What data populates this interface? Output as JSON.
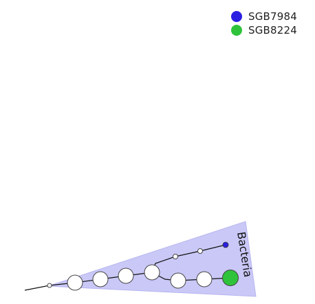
{
  "legend": {
    "items": [
      {
        "label": "SGB7984",
        "color": "#2a1fe0"
      },
      {
        "label": "SGB8224",
        "color": "#2ec33b"
      }
    ]
  },
  "clade": {
    "label": "Bacteria",
    "fill": "#c9c8f7"
  },
  "colors": {
    "node_fill": "#ffffff",
    "node_stroke": "#444444",
    "branch": "#111111"
  }
}
